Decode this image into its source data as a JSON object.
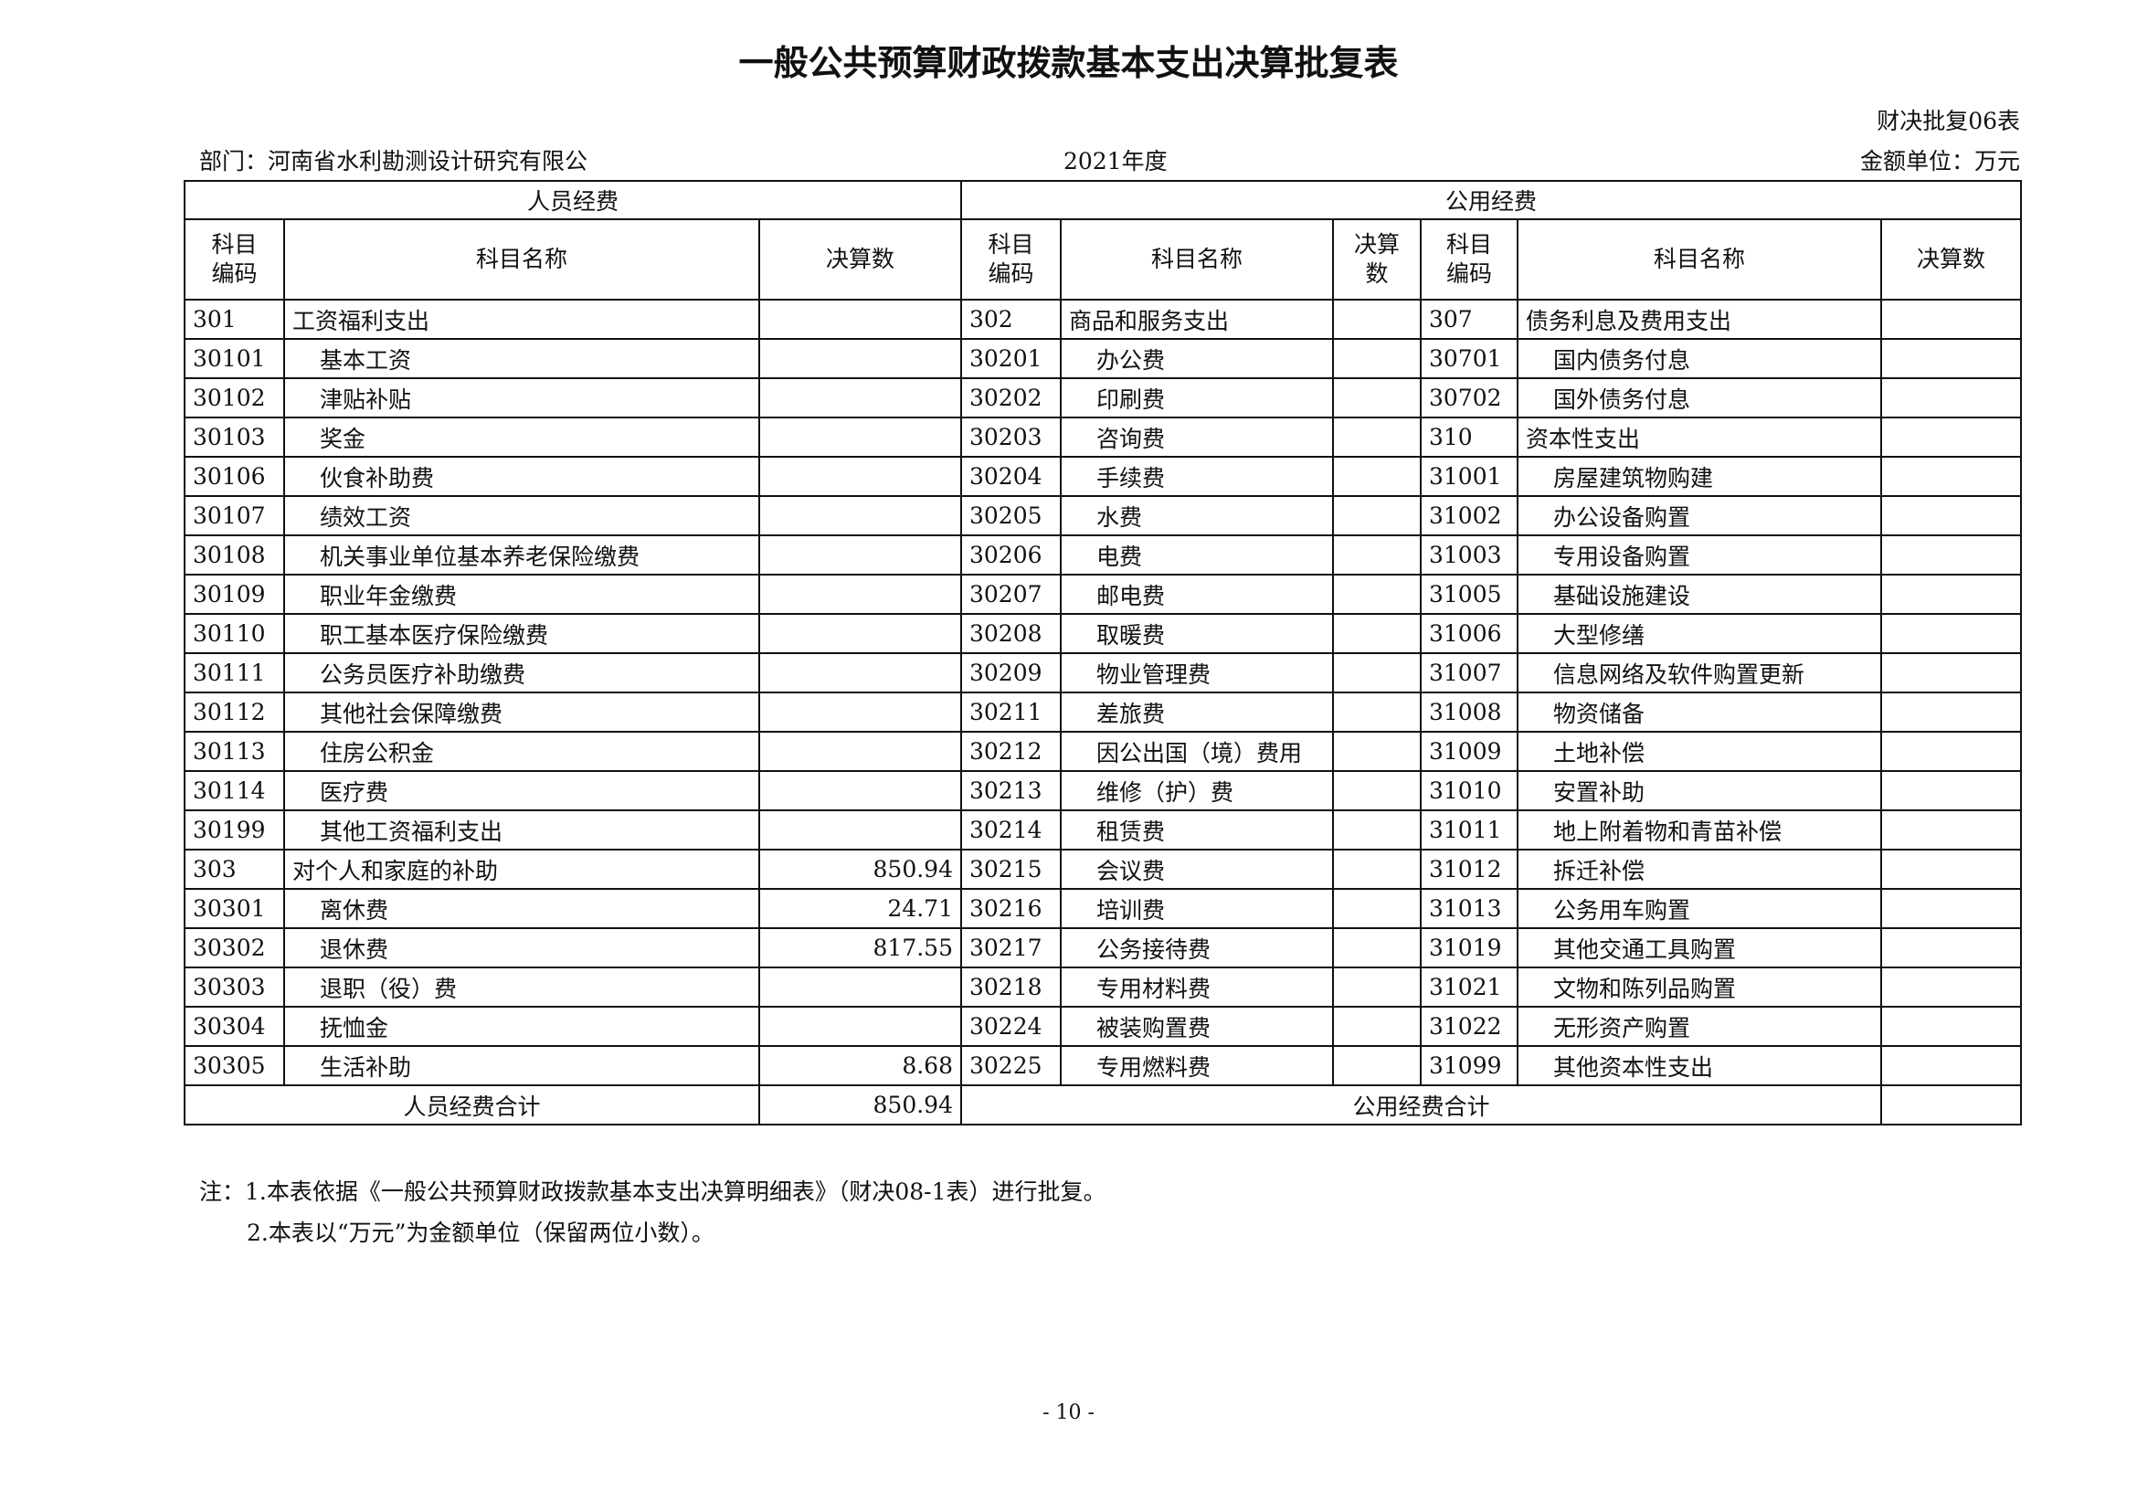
{
  "title": "一般公共预算财政拨款基本支出决算批复表",
  "form_no": "财决批复06表",
  "department": "部门：河南省水利勘测设计研究有限公",
  "year": "2021年度",
  "unit": "金额单位：万元",
  "groups": {
    "personnel": "人员经费",
    "public": "公用经费"
  },
  "headers": {
    "code": "科目编码",
    "name": "科目名称",
    "amount": "决算数"
  },
  "rows": [
    [
      [
        "301",
        "工资福利支出",
        ""
      ],
      [
        "302",
        "商品和服务支出",
        ""
      ],
      [
        "307",
        "债务利息及费用支出",
        ""
      ]
    ],
    [
      [
        "30101",
        "基本工资",
        ""
      ],
      [
        "30201",
        "办公费",
        ""
      ],
      [
        "30701",
        "国内债务付息",
        ""
      ]
    ],
    [
      [
        "30102",
        "津贴补贴",
        ""
      ],
      [
        "30202",
        "印刷费",
        ""
      ],
      [
        "30702",
        "国外债务付息",
        ""
      ]
    ],
    [
      [
        "30103",
        "奖金",
        ""
      ],
      [
        "30203",
        "咨询费",
        ""
      ],
      [
        "310",
        "资本性支出",
        ""
      ]
    ],
    [
      [
        "30106",
        "伙食补助费",
        ""
      ],
      [
        "30204",
        "手续费",
        ""
      ],
      [
        "31001",
        "房屋建筑物购建",
        ""
      ]
    ],
    [
      [
        "30107",
        "绩效工资",
        ""
      ],
      [
        "30205",
        "水费",
        ""
      ],
      [
        "31002",
        "办公设备购置",
        ""
      ]
    ],
    [
      [
        "30108",
        "机关事业单位基本养老保险缴费",
        ""
      ],
      [
        "30206",
        "电费",
        ""
      ],
      [
        "31003",
        "专用设备购置",
        ""
      ]
    ],
    [
      [
        "30109",
        "职业年金缴费",
        ""
      ],
      [
        "30207",
        "邮电费",
        ""
      ],
      [
        "31005",
        "基础设施建设",
        ""
      ]
    ],
    [
      [
        "30110",
        "职工基本医疗保险缴费",
        ""
      ],
      [
        "30208",
        "取暖费",
        ""
      ],
      [
        "31006",
        "大型修缮",
        ""
      ]
    ],
    [
      [
        "30111",
        "公务员医疗补助缴费",
        ""
      ],
      [
        "30209",
        "物业管理费",
        ""
      ],
      [
        "31007",
        "信息网络及软件购置更新",
        ""
      ]
    ],
    [
      [
        "30112",
        "其他社会保障缴费",
        ""
      ],
      [
        "30211",
        "差旅费",
        ""
      ],
      [
        "31008",
        "物资储备",
        ""
      ]
    ],
    [
      [
        "30113",
        "住房公积金",
        ""
      ],
      [
        "30212",
        "因公出国（境）费用",
        ""
      ],
      [
        "31009",
        "土地补偿",
        ""
      ]
    ],
    [
      [
        "30114",
        "医疗费",
        ""
      ],
      [
        "30213",
        "维修（护）费",
        ""
      ],
      [
        "31010",
        "安置补助",
        ""
      ]
    ],
    [
      [
        "30199",
        "其他工资福利支出",
        ""
      ],
      [
        "30214",
        "租赁费",
        ""
      ],
      [
        "31011",
        "地上附着物和青苗补偿",
        ""
      ]
    ],
    [
      [
        "303",
        "对个人和家庭的补助",
        "850.94"
      ],
      [
        "30215",
        "会议费",
        ""
      ],
      [
        "31012",
        "拆迁补偿",
        ""
      ]
    ],
    [
      [
        "30301",
        "离休费",
        "24.71"
      ],
      [
        "30216",
        "培训费",
        ""
      ],
      [
        "31013",
        "公务用车购置",
        ""
      ]
    ],
    [
      [
        "30302",
        "退休费",
        "817.55"
      ],
      [
        "30217",
        "公务接待费",
        ""
      ],
      [
        "31019",
        "其他交通工具购置",
        ""
      ]
    ],
    [
      [
        "30303",
        "退职（役）费",
        ""
      ],
      [
        "30218",
        "专用材料费",
        ""
      ],
      [
        "31021",
        "文物和陈列品购置",
        ""
      ]
    ],
    [
      [
        "30304",
        "抚恤金",
        ""
      ],
      [
        "30224",
        "被装购置费",
        ""
      ],
      [
        "31022",
        "无形资产购置",
        ""
      ]
    ],
    [
      [
        "30305",
        "生活补助",
        "8.68"
      ],
      [
        "30225",
        "专用燃料费",
        ""
      ],
      [
        "31099",
        "其他资本性支出",
        ""
      ]
    ]
  ],
  "totals": {
    "personnel_label": "人员经费合计",
    "personnel_value": "850.94",
    "public_label": "公用经费合计",
    "public_value": ""
  },
  "notes": [
    "注：1.本表依据《一般公共预算财政拨款基本支出决算明细表》（财决08-1表）进行批复。",
    "2.本表以“万元”为金额单位（保留两位小数）。"
  ],
  "page_number": "- 10 -"
}
